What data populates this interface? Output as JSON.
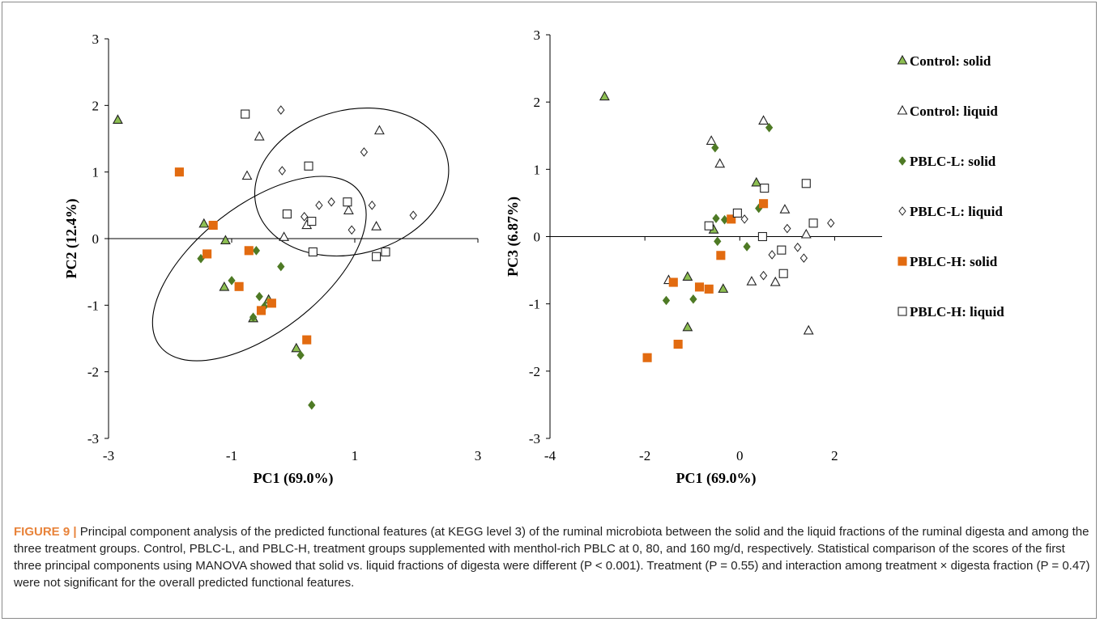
{
  "colors": {
    "control_fill": "#8dbf52",
    "pblc_l_solid_fill": "#4e7a25",
    "pblc_h_solid_fill": "#e26b10",
    "marker_stroke": "#222222",
    "caption_label": "#e8833a"
  },
  "chart_data": [
    {
      "type": "scatter",
      "xlabel": "PC1 (69.0%)",
      "ylabel": "PC2 (12.4%)",
      "xlim": [
        -3,
        3
      ],
      "ylim": [
        -3,
        3
      ],
      "xticks": [
        -3,
        -1,
        1,
        3
      ],
      "yticks": [
        3,
        2,
        1,
        0,
        -1,
        -2,
        -3
      ],
      "grid": false,
      "ellipses": [
        {
          "group": "solid",
          "center": [
            -0.55,
            -0.45
          ],
          "rx": 2.05,
          "ry": 0.95,
          "rotation_deg": -38
        },
        {
          "group": "liquid",
          "center": [
            0.95,
            0.85
          ],
          "rx": 1.6,
          "ry": 1.08,
          "rotation_deg": -15
        }
      ],
      "series": [
        {
          "name": "Control: solid",
          "marker": "triangle-filled",
          "points": [
            [
              -2.85,
              1.78
            ],
            [
              -1.45,
              0.22
            ],
            [
              -1.1,
              -0.03
            ],
            [
              -1.12,
              -0.73
            ],
            [
              -0.65,
              -1.2
            ],
            [
              -0.4,
              -0.92
            ],
            [
              0.05,
              -1.65
            ]
          ]
        },
        {
          "name": "Control: liquid",
          "marker": "triangle-open",
          "points": [
            [
              -0.75,
              0.94
            ],
            [
              -0.55,
              1.53
            ],
            [
              -0.15,
              0.02
            ],
            [
              0.22,
              0.2
            ],
            [
              0.9,
              0.42
            ],
            [
              1.35,
              0.18
            ],
            [
              1.4,
              1.62
            ]
          ]
        },
        {
          "name": "PBLC-L: solid",
          "marker": "diamond-filled",
          "points": [
            [
              -1.5,
              -0.3
            ],
            [
              -1.0,
              -0.63
            ],
            [
              -0.6,
              -0.18
            ],
            [
              -0.55,
              -0.87
            ],
            [
              -0.65,
              -1.18
            ],
            [
              -0.47,
              -1.02
            ],
            [
              -0.2,
              -0.42
            ],
            [
              0.12,
              -1.75
            ],
            [
              0.3,
              -2.5
            ]
          ]
        },
        {
          "name": "PBLC-L: liquid",
          "marker": "diamond-open",
          "points": [
            [
              -0.2,
              1.93
            ],
            [
              -0.18,
              1.02
            ],
            [
              0.18,
              0.33
            ],
            [
              0.42,
              0.5
            ],
            [
              0.62,
              0.55
            ],
            [
              0.95,
              0.13
            ],
            [
              1.15,
              1.3
            ],
            [
              1.28,
              0.5
            ],
            [
              1.95,
              0.35
            ]
          ]
        },
        {
          "name": "PBLC-H: solid",
          "marker": "square-filled",
          "points": [
            [
              -1.85,
              1.0
            ],
            [
              -1.4,
              -0.23
            ],
            [
              -1.3,
              0.2
            ],
            [
              -0.88,
              -0.72
            ],
            [
              -0.72,
              -0.18
            ],
            [
              -0.52,
              -1.08
            ],
            [
              -0.35,
              -0.97
            ],
            [
              0.22,
              -1.52
            ]
          ]
        },
        {
          "name": "PBLC-H: liquid",
          "marker": "square-open",
          "points": [
            [
              -0.78,
              1.87
            ],
            [
              -0.1,
              0.37
            ],
            [
              0.25,
              1.09
            ],
            [
              0.3,
              0.26
            ],
            [
              0.32,
              -0.2
            ],
            [
              0.88,
              0.55
            ],
            [
              1.35,
              -0.27
            ],
            [
              1.5,
              -0.2
            ]
          ]
        }
      ]
    },
    {
      "type": "scatter",
      "xlabel": "PC1 (69.0%)",
      "ylabel": "PC3 (6.87%)",
      "xlim": [
        -4,
        3
      ],
      "ylim": [
        -3,
        3
      ],
      "xticks": [
        -4,
        -2,
        0,
        2
      ],
      "yticks": [
        3,
        2,
        1,
        0,
        -1,
        -2,
        -3
      ],
      "grid": false,
      "series": [
        {
          "name": "Control: solid",
          "marker": "triangle-filled",
          "points": [
            [
              -2.85,
              2.08
            ],
            [
              -1.1,
              -0.6
            ],
            [
              -1.1,
              -1.35
            ],
            [
              -0.35,
              -0.78
            ],
            [
              -0.55,
              0.1
            ],
            [
              0.35,
              0.8
            ]
          ]
        },
        {
          "name": "Control: liquid",
          "marker": "triangle-open",
          "points": [
            [
              -0.6,
              1.42
            ],
            [
              -0.42,
              1.08
            ],
            [
              0.5,
              1.72
            ],
            [
              0.95,
              0.4
            ],
            [
              1.4,
              0.03
            ],
            [
              0.25,
              -0.67
            ],
            [
              0.75,
              -0.68
            ],
            [
              1.45,
              -1.4
            ],
            [
              -1.5,
              -0.65
            ]
          ]
        },
        {
          "name": "PBLC-L: solid",
          "marker": "diamond-filled",
          "points": [
            [
              -1.55,
              -0.95
            ],
            [
              -0.98,
              -0.93
            ],
            [
              -0.52,
              1.32
            ],
            [
              -0.5,
              0.27
            ],
            [
              -0.47,
              -0.07
            ],
            [
              0.15,
              -0.15
            ],
            [
              0.4,
              0.42
            ],
            [
              0.62,
              1.62
            ],
            [
              -0.32,
              0.25
            ]
          ]
        },
        {
          "name": "PBLC-L: liquid",
          "marker": "diamond-open",
          "points": [
            [
              0.1,
              0.26
            ],
            [
              0.5,
              -0.58
            ],
            [
              0.68,
              -0.27
            ],
            [
              1.0,
              0.12
            ],
            [
              1.22,
              -0.16
            ],
            [
              1.35,
              -0.32
            ],
            [
              1.92,
              0.2
            ]
          ]
        },
        {
          "name": "PBLC-H: solid",
          "marker": "square-filled",
          "points": [
            [
              -1.95,
              -1.8
            ],
            [
              -1.4,
              -0.68
            ],
            [
              -1.3,
              -1.6
            ],
            [
              -0.85,
              -0.75
            ],
            [
              -0.65,
              -0.78
            ],
            [
              -0.4,
              -0.28
            ],
            [
              -0.18,
              0.26
            ],
            [
              0.5,
              0.49
            ]
          ]
        },
        {
          "name": "PBLC-H: liquid",
          "marker": "square-open",
          "points": [
            [
              -0.65,
              0.16
            ],
            [
              -0.05,
              0.35
            ],
            [
              0.48,
              0.0
            ],
            [
              0.52,
              0.72
            ],
            [
              0.88,
              -0.2
            ],
            [
              0.92,
              -0.55
            ],
            [
              1.4,
              0.79
            ],
            [
              1.55,
              0.2
            ]
          ]
        }
      ]
    }
  ],
  "legend": [
    {
      "label": "Control: solid",
      "marker": "triangle-filled"
    },
    {
      "label": "Control: liquid",
      "marker": "triangle-open"
    },
    {
      "label": "PBLC-L: solid",
      "marker": "diamond-filled"
    },
    {
      "label": "PBLC-L: liquid",
      "marker": "diamond-open"
    },
    {
      "label": "PBLC-H: solid",
      "marker": "square-filled"
    },
    {
      "label": "PBLC-H: liquid",
      "marker": "square-open"
    }
  ],
  "caption": {
    "label": "FIGURE 9 |",
    "text": " Principal component analysis of the predicted functional features (at KEGG level 3) of the ruminal microbiota between the solid and the liquid fractions of the ruminal digesta and among the three treatment groups. Control, PBLC-L, and PBLC-H, treatment groups supplemented with menthol-rich PBLC at 0, 80, and 160 mg/d, respectively. Statistical comparison of the scores of the first three principal components using MANOVA showed that solid vs. liquid fractions of digesta were different (P < 0.001). Treatment (P = 0.55) and interaction among treatment × digesta fraction (P = 0.47) were not significant for the overall predicted functional features."
  }
}
